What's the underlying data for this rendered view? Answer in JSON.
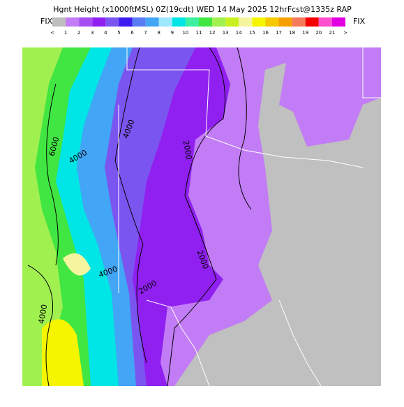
{
  "header": {
    "title": "Hgnt Height (x1000ftMSL) 0Z(19cdt) WED 14 May 2025 12hrFcst@1335z RAP",
    "left_tag": "FIX",
    "right_tag": "FIX"
  },
  "legend": {
    "colors": [
      "#bebebe",
      "#c27cf5",
      "#a64df4",
      "#9020f0",
      "#7b55f0",
      "#3c1cf0",
      "#5a7cf5",
      "#42a5f5",
      "#9ee8ff",
      "#00e5e5",
      "#3cf0a0",
      "#42e642",
      "#a0f050",
      "#c8f01e",
      "#f5f5a0",
      "#f5f500",
      "#f5c800",
      "#f5a000",
      "#f57a5a",
      "#f50000",
      "#ff4fd0",
      "#e000e0"
    ],
    "labels": [
      "<",
      "1",
      "2",
      "3",
      "4",
      "5",
      "6",
      "7",
      "8",
      "9",
      "10",
      "11",
      "12",
      "13",
      "14",
      "15",
      "16",
      "17",
      "18",
      "19",
      "20",
      "21",
      ">"
    ]
  },
  "contour_labels": [
    "6000",
    "4000",
    "4000",
    "2000",
    "2000",
    "4000",
    "2000",
    "4000"
  ]
}
